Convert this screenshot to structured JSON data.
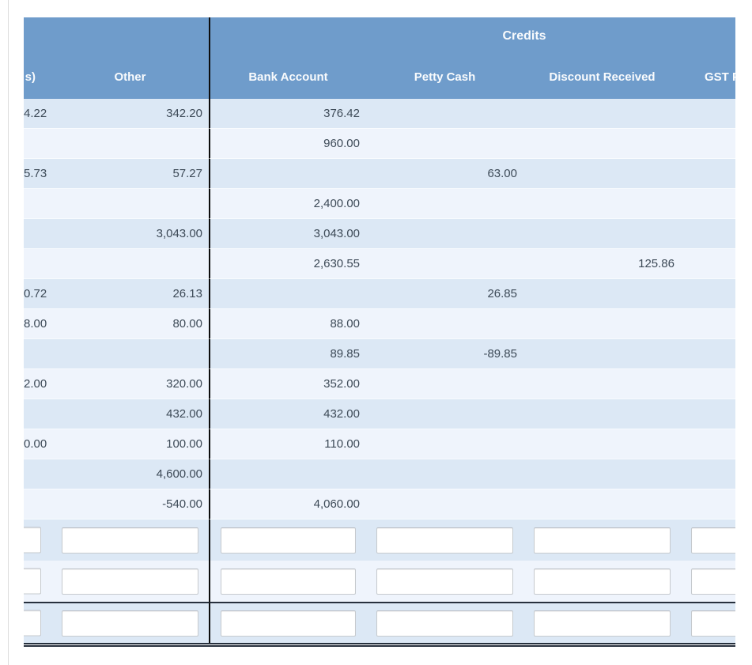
{
  "table": {
    "section_header": "Credits",
    "left_partial": {
      "header_fragment": "s)",
      "values": [
        "4.22",
        "",
        "5.73",
        "",
        "",
        "",
        "0.72",
        "8.00",
        "",
        "2.00",
        "",
        "0.00",
        "",
        ""
      ]
    },
    "columns": {
      "other": "Other",
      "bank": "Bank Account",
      "petty": "Petty Cash",
      "discount": "Discount Received",
      "gst": "GST P"
    },
    "rows": [
      {
        "left": "4.22",
        "other": "342.20",
        "bank": "376.42",
        "petty": "",
        "discount": "",
        "gst": ""
      },
      {
        "left": "",
        "other": "",
        "bank": "960.00",
        "petty": "",
        "discount": "",
        "gst": ""
      },
      {
        "left": "5.73",
        "other": "57.27",
        "bank": "",
        "petty": "63.00",
        "discount": "",
        "gst": ""
      },
      {
        "left": "",
        "other": "",
        "bank": "2,400.00",
        "petty": "",
        "discount": "",
        "gst": ""
      },
      {
        "left": "",
        "other": "3,043.00",
        "bank": "3,043.00",
        "petty": "",
        "discount": "",
        "gst": ""
      },
      {
        "left": "",
        "other": "",
        "bank": "2,630.55",
        "petty": "",
        "discount": "125.86",
        "gst": ""
      },
      {
        "left": "0.72",
        "other": "26.13",
        "bank": "",
        "petty": "26.85",
        "discount": "",
        "gst": ""
      },
      {
        "left": "8.00",
        "other": "80.00",
        "bank": "88.00",
        "petty": "",
        "discount": "",
        "gst": ""
      },
      {
        "left": "",
        "other": "",
        "bank": "89.85",
        "petty": "-89.85",
        "discount": "",
        "gst": ""
      },
      {
        "left": "2.00",
        "other": "320.00",
        "bank": "352.00",
        "petty": "",
        "discount": "",
        "gst": ""
      },
      {
        "left": "",
        "other": "432.00",
        "bank": "432.00",
        "petty": "",
        "discount": "",
        "gst": ""
      },
      {
        "left": "0.00",
        "other": "100.00",
        "bank": "110.00",
        "petty": "",
        "discount": "",
        "gst": ""
      },
      {
        "left": "",
        "other": "4,600.00",
        "bank": "",
        "petty": "",
        "discount": "",
        "gst": ""
      },
      {
        "left": "",
        "other": "-540.00",
        "bank": "4,060.00",
        "petty": "",
        "discount": "",
        "gst": ""
      }
    ],
    "input_rows": 3,
    "input_values": [
      "",
      "",
      ""
    ]
  },
  "colors": {
    "header_blue": "#6f9ccb",
    "stripe_dark": "#dce8f5",
    "stripe_light": "#eff4fc",
    "text": "#3d4a57",
    "section_divider": "#0d0d0d",
    "rule_dark": "#27303d",
    "input_border": "#c6cace",
    "page_edge_line": "#dcdcdc"
  }
}
